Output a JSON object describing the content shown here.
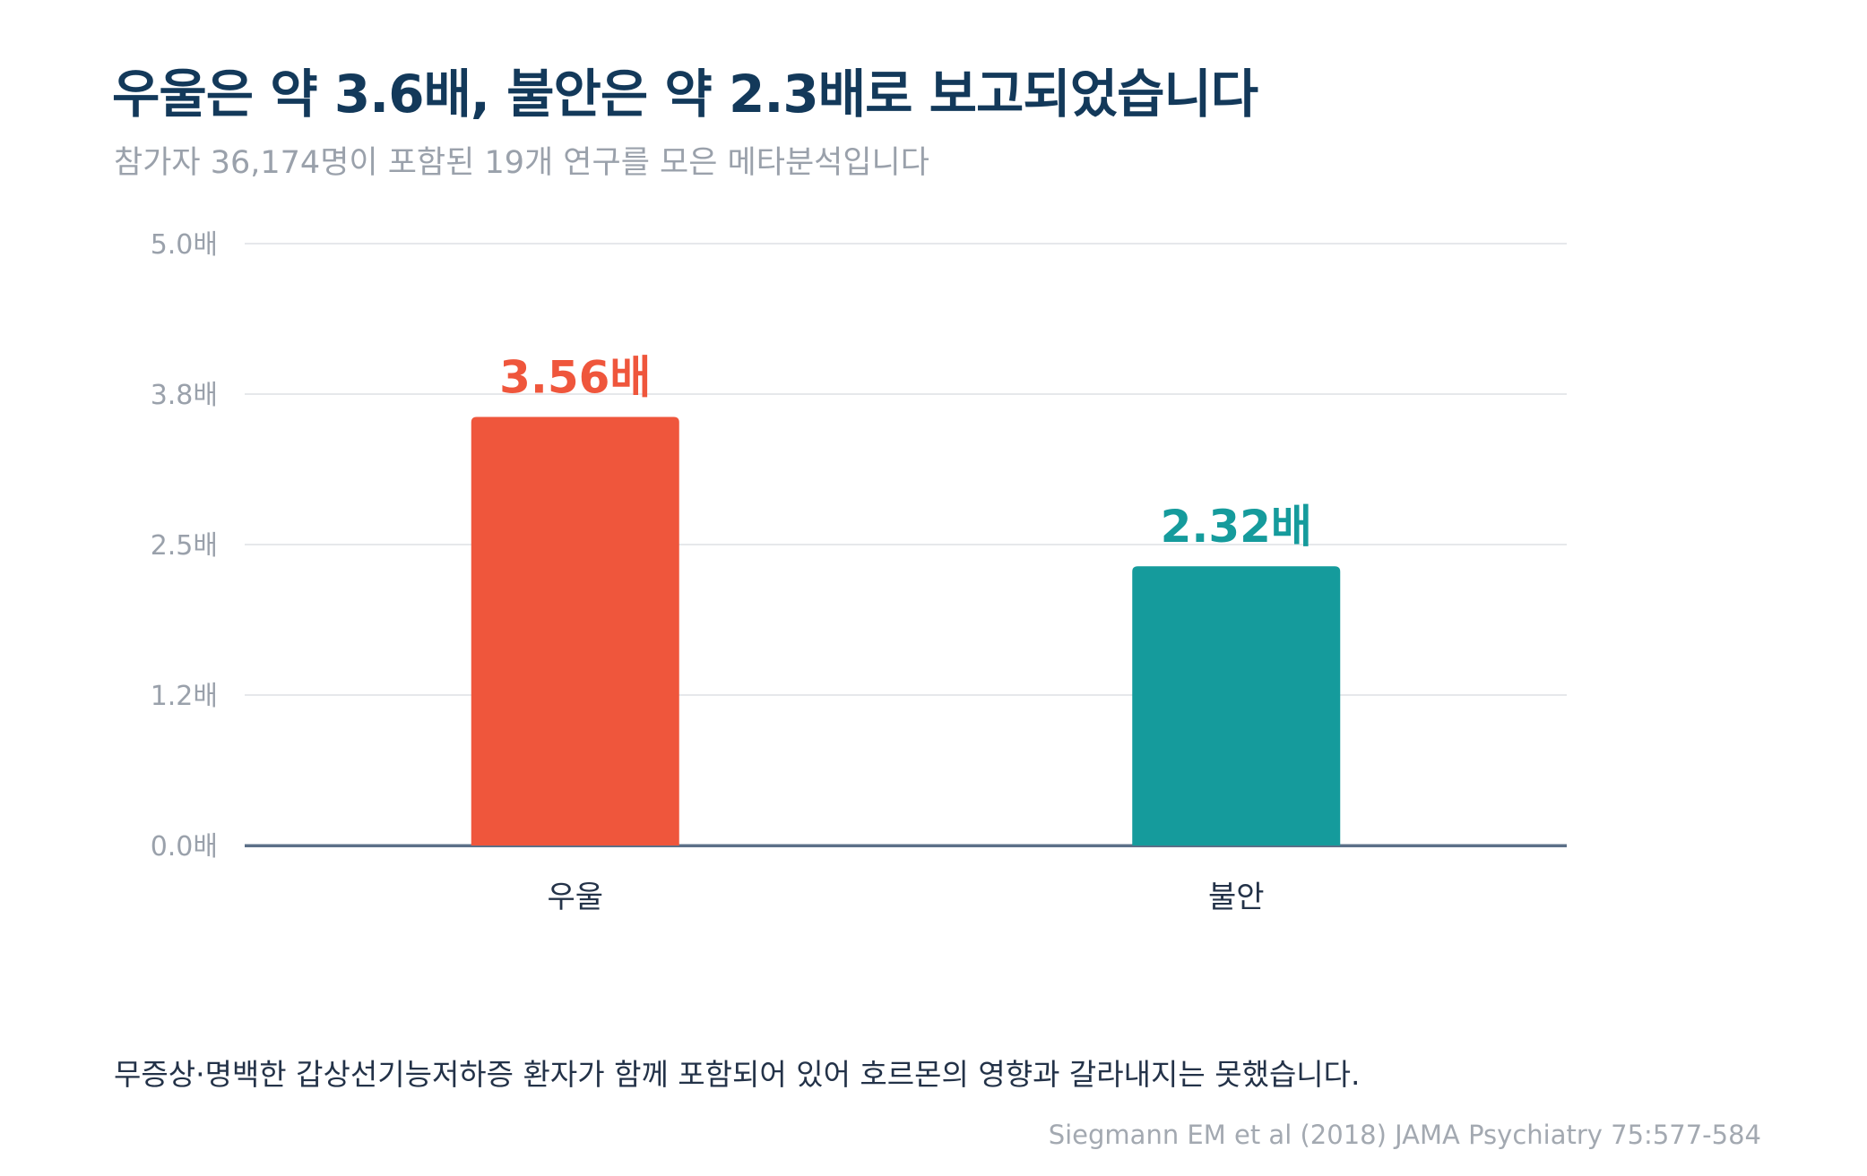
{
  "chart_data": {
    "type": "bar",
    "title": "우울은 약 3.6배, 불안은 약 2.3배로 보고되었습니다",
    "subtitle": "참가자 36,174명이 포함된 19개 연구를 모은 메타분석입니다",
    "categories": [
      "우울",
      "불안"
    ],
    "values": [
      3.56,
      2.32
    ],
    "value_labels": [
      "3.56배",
      "2.32배"
    ],
    "colors": [
      "#ef563c",
      "#159b9c"
    ],
    "ylim": [
      0,
      5.0
    ],
    "yticks": [
      {
        "value": 0.0,
        "label": "0.0배"
      },
      {
        "value": 1.25,
        "label": "1.2배"
      },
      {
        "value": 2.5,
        "label": "2.5배"
      },
      {
        "value": 3.75,
        "label": "3.8배"
      },
      {
        "value": 5.0,
        "label": "5.0배"
      }
    ],
    "xlabel": "",
    "ylabel": "",
    "grid": true,
    "legend": "none"
  },
  "footnote": "무증상·명백한 갑상선기능저하증 환자가 함께 포함되어 있어 호르몬의 영향과 갈라내지는 못했습니다.",
  "source": "Siegmann EM et al (2018) JAMA Psychiatry 75:577-584"
}
